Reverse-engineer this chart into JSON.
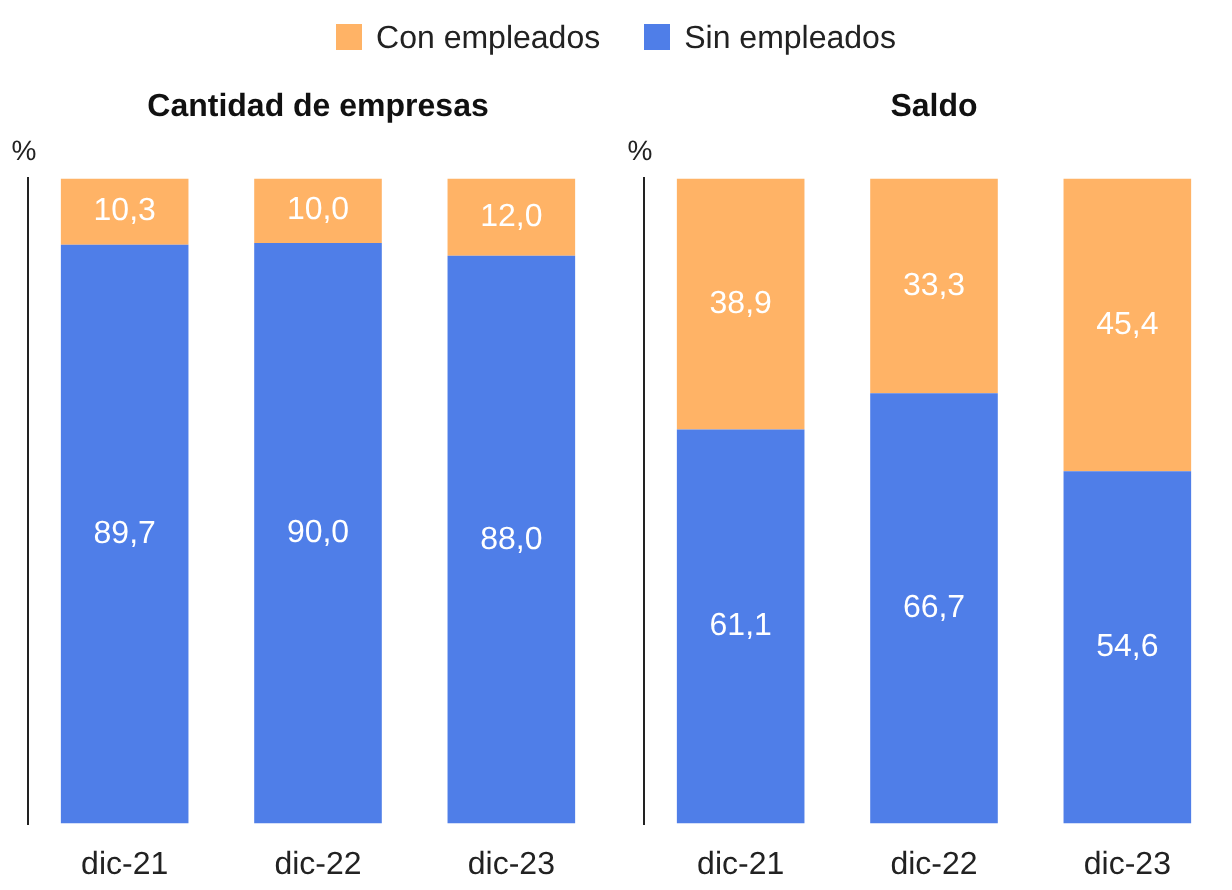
{
  "chart_data": [
    {
      "type": "bar",
      "title": "Cantidad de empresas",
      "ylabel": "%",
      "categories": [
        "dic-21",
        "dic-22",
        "dic-23"
      ],
      "stacked": true,
      "legend": "top",
      "tick_labels": "x",
      "grid": false,
      "series": [
        {
          "name": "Sin empleados",
          "color": "#4f7ee8",
          "values": [
            89.7,
            90.0,
            88.0
          ],
          "value_labels": [
            "89,7",
            "90,0",
            "88,0"
          ]
        },
        {
          "name": "Con empleados",
          "color": "#ffb366",
          "values": [
            10.3,
            10.0,
            12.0
          ],
          "value_labels": [
            "10,3",
            "10,0",
            "12,0"
          ]
        }
      ]
    },
    {
      "type": "bar",
      "title": "Saldo",
      "ylabel": "%",
      "categories": [
        "dic-21",
        "dic-22",
        "dic-23"
      ],
      "stacked": true,
      "tick_labels": "x",
      "grid": false,
      "series": [
        {
          "color": "#4f7ee8",
          "values": [
            61.1,
            66.7,
            54.6
          ],
          "value_labels": [
            "61,1",
            "66,7",
            "54,6"
          ]
        },
        {
          "color": "#ffb366",
          "values": [
            38.9,
            33.3,
            45.4
          ],
          "value_labels": [
            "38,9",
            "33,3",
            "45,4"
          ]
        }
      ]
    }
  ]
}
